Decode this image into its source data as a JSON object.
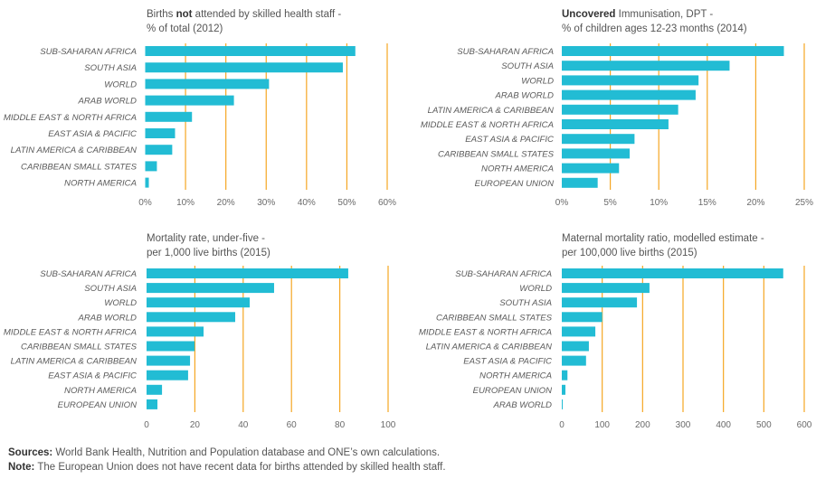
{
  "colors": {
    "bar": "#22bcd4",
    "grid": "#f5a623",
    "text": "#555555"
  },
  "footer": {
    "sources_label": "Sources:",
    "sources_text": " World Bank Health, Nutrition and Population database and ONE’s own calculations.",
    "note_label": "Note:",
    "note_text": " The European Union does not have recent data for births attended by skilled health staff."
  },
  "chart_data": [
    {
      "type": "bar",
      "orientation": "horizontal",
      "title_bold": "",
      "title_pre": "Births ",
      "title_emph": "not",
      "title_post": " attended by skilled health staff -",
      "title_line2": "% of total (2012)",
      "title": "Births not attended by skilled health staff - % of total (2012)",
      "categories": [
        "SUB-SAHARAN AFRICA",
        "SOUTH ASIA",
        "WORLD",
        "ARAB WORLD",
        "MIDDLE EAST & NORTH AFRICA",
        "EAST ASIA & PACIFIC",
        "LATIN AMERICA & CARIBBEAN",
        "CARIBBEAN SMALL STATES",
        "NORTH AMERICA"
      ],
      "values": [
        52.1,
        49.0,
        30.7,
        22.0,
        11.6,
        7.4,
        6.7,
        2.9,
        0.9
      ],
      "xlim": [
        0,
        60
      ],
      "xticks": [
        0,
        10,
        20,
        30,
        40,
        50,
        60
      ],
      "xtick_labels": [
        "0%",
        "10%",
        "20%",
        "30%",
        "40%",
        "50%",
        "60%"
      ],
      "grid": true,
      "xlabel": "",
      "ylabel": ""
    },
    {
      "type": "bar",
      "orientation": "horizontal",
      "title_pre": "",
      "title_emph": "Uncovered",
      "title_post": " Immunisation, DPT -",
      "title_line2": "% of children ages 12-23 months (2014)",
      "title": "Uncovered Immunisation, DPT - % of children ages 12-23 months (2014)",
      "categories": [
        "SUB-SAHARAN AFRICA",
        "SOUTH ASIA",
        "WORLD",
        "ARAB WORLD",
        "LATIN AMERICA & CARIBBEAN",
        "MIDDLE EAST & NORTH AFRICA",
        "EAST ASIA & PACIFIC",
        "CARIBBEAN SMALL STATES",
        "NORTH AMERICA",
        "EUROPEAN UNION"
      ],
      "values": [
        22.9,
        17.3,
        14.1,
        13.8,
        12.0,
        11.0,
        7.5,
        7.0,
        5.9,
        3.7
      ],
      "xlim": [
        0,
        25
      ],
      "xticks": [
        0,
        5,
        10,
        15,
        20,
        25
      ],
      "xtick_labels": [
        "0%",
        "5%",
        "10%",
        "15%",
        "20%",
        "25%"
      ],
      "grid": true,
      "xlabel": "",
      "ylabel": ""
    },
    {
      "type": "bar",
      "orientation": "horizontal",
      "title_pre": "Mortality rate, under-five -",
      "title_emph": "",
      "title_post": "",
      "title_line2": "per 1,000 live births (2015)",
      "title": "Mortality rate, under-five - per 1,000 live births (2015)",
      "categories": [
        "SUB-SAHARAN AFRICA",
        "SOUTH ASIA",
        "WORLD",
        "ARAB WORLD",
        "MIDDLE EAST & NORTH AFRICA",
        "CARIBBEAN SMALL STATES",
        "LATIN AMERICA & CARIBBEAN",
        "EAST ASIA & PACIFIC",
        "NORTH AMERICA",
        "EUROPEAN UNION"
      ],
      "values": [
        83.5,
        52.8,
        42.7,
        36.7,
        23.6,
        19.9,
        18.0,
        17.2,
        6.4,
        4.5
      ],
      "xlim": [
        0,
        100
      ],
      "xticks": [
        0,
        20,
        40,
        60,
        80,
        100
      ],
      "xtick_labels": [
        "0",
        "20",
        "40",
        "60",
        "80",
        "100"
      ],
      "grid": true,
      "xlabel": "",
      "ylabel": ""
    },
    {
      "type": "bar",
      "orientation": "horizontal",
      "title_pre": "Maternal mortality ratio, modelled estimate -",
      "title_emph": "",
      "title_post": "",
      "title_line2": "per 100,000 live births (2015)",
      "title": "Maternal mortality ratio, modelled estimate - per 100,000 live births (2015)",
      "categories": [
        "SUB-SAHARAN AFRICA",
        "WORLD",
        "SOUTH ASIA",
        "CARIBBEAN SMALL STATES",
        "MIDDLE EAST & NORTH AFRICA",
        "LATIN AMERICA & CARIBBEAN",
        "EAST ASIA & PACIFIC",
        "NORTH AMERICA",
        "EUROPEAN UNION",
        "ARAB WORLD"
      ],
      "values": [
        548,
        217,
        186,
        100,
        83,
        67,
        60,
        14,
        9,
        1
      ],
      "xlim": [
        0,
        600
      ],
      "xticks": [
        0,
        100,
        200,
        300,
        400,
        500,
        600
      ],
      "xtick_labels": [
        "0",
        "100",
        "200",
        "300",
        "400",
        "500",
        "600"
      ],
      "grid": true,
      "xlabel": "",
      "ylabel": ""
    }
  ]
}
